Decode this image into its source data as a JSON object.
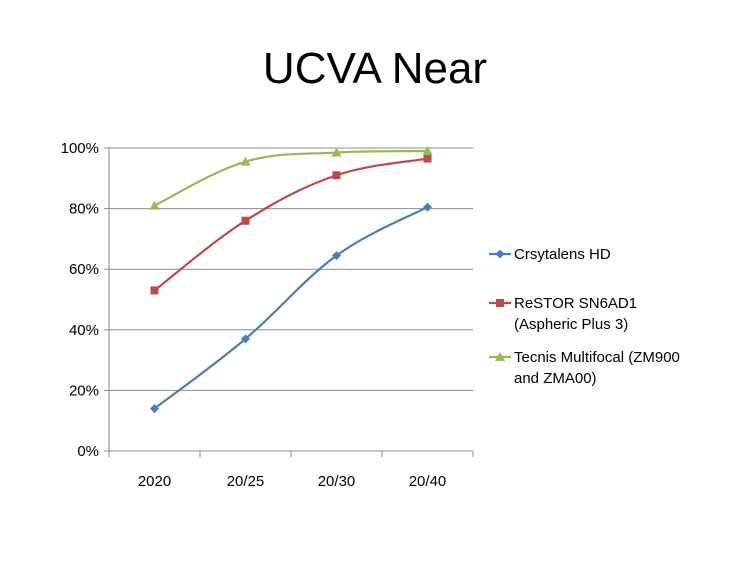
{
  "chart_data": {
    "type": "line",
    "title": "UCVA Near",
    "xlabel": "",
    "ylabel": "",
    "categories": [
      "2020",
      "20/25",
      "20/30",
      "20/40"
    ],
    "ylim": [
      0,
      100
    ],
    "y_ticks": [
      "0%",
      "20%",
      "40%",
      "60%",
      "80%",
      "100%"
    ],
    "y_tick_values": [
      0,
      20,
      40,
      60,
      80,
      100
    ],
    "grid": true,
    "legend_position": "right",
    "series": [
      {
        "name": "Crsytalens HD",
        "legend_lines": [
          "Crsytalens HD"
        ],
        "values": [
          14,
          37,
          64.5,
          80.5
        ],
        "color": "#4a7ebb",
        "marker": "diamond"
      },
      {
        "name": "ReSTOR SN6AD1 (Aspheric Plus 3)",
        "legend_lines": [
          "ReSTOR SN6AD1",
          "(Aspheric Plus 3)"
        ],
        "values": [
          53,
          76,
          91,
          96.5
        ],
        "color": "#be4b48",
        "marker": "square"
      },
      {
        "name": "Tecnis Multifocal (ZM900 and ZMA00)",
        "legend_lines": [
          "Tecnis Multifocal (ZM900",
          "and ZMA00)"
        ],
        "values": [
          81,
          95.5,
          98.5,
          99
        ],
        "color": "#98b954",
        "marker": "triangle"
      }
    ]
  }
}
